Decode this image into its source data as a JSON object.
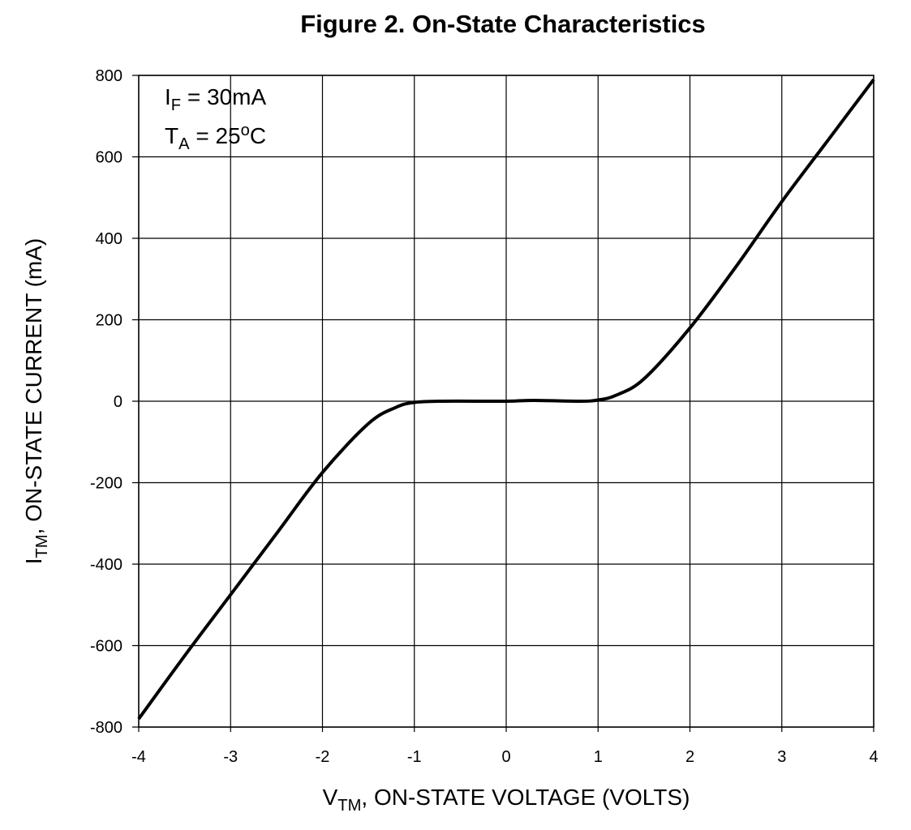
{
  "chart_data": {
    "type": "line",
    "title": "Figure 2. On-State Characteristics",
    "xlabel": {
      "main": "V",
      "sub": "TM",
      "rest": ", ON-STATE VOLTAGE (VOLTS)"
    },
    "ylabel": {
      "main": "I",
      "sub": "TM",
      "rest": ", ON-STATE CURRENT (mA)"
    },
    "xlim": [
      -4,
      4
    ],
    "ylim": [
      -800,
      800
    ],
    "xticks": [
      -4,
      -3,
      -2,
      -1,
      0,
      1,
      2,
      3,
      4
    ],
    "yticks": [
      800,
      600,
      400,
      200,
      0,
      -200,
      -400,
      -600,
      -800
    ],
    "grid": true,
    "annotations": [
      {
        "main": "I",
        "sub": "F",
        "rest": " = 30mA"
      },
      {
        "main": "T",
        "sub": "A",
        "rest": " = 25",
        "sup": "o",
        "tail": "C"
      }
    ],
    "series": [
      {
        "name": "On-state current",
        "color": "#000000",
        "x": [
          -4,
          -3.5,
          -3,
          -2.5,
          -2,
          -1.5,
          -1.2,
          -1,
          -0.7,
          0,
          0.3,
          0.8,
          1,
          1.2,
          1.5,
          2,
          2.5,
          3,
          3.5,
          4
        ],
        "y": [
          -780,
          -625,
          -475,
          -325,
          -175,
          -55,
          -15,
          -3,
          0,
          0,
          2,
          0,
          3,
          15,
          55,
          180,
          330,
          490,
          640,
          790
        ]
      }
    ]
  }
}
